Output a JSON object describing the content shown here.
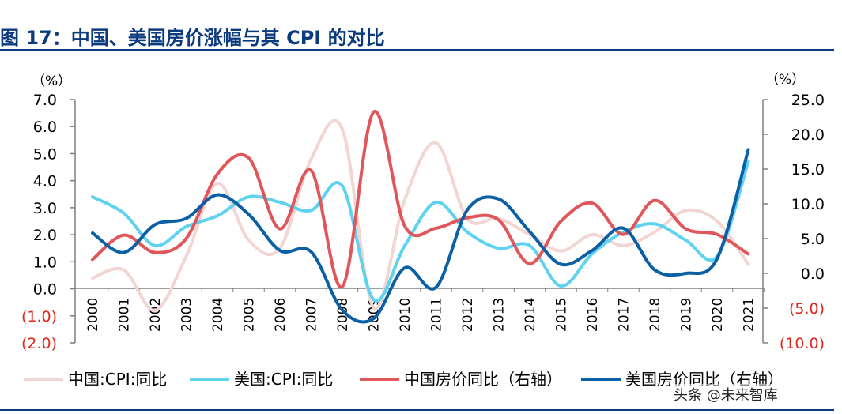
{
  "title": "图 17：中国、美国房价涨幅与其 CPI 的对比",
  "watermark": "头条 @未来智库",
  "chart_data": {
    "type": "line",
    "categories": [
      "2000",
      "2001",
      "2002",
      "2003",
      "2004",
      "2005",
      "2006",
      "2007",
      "2008",
      "2009",
      "2010",
      "2011",
      "2012",
      "2013",
      "2014",
      "2015",
      "2016",
      "2017",
      "2018",
      "2019",
      "2020",
      "2021"
    ],
    "left_axis": {
      "unit": "（%）",
      "ylim": [
        -2.0,
        7.0
      ],
      "ticks": [
        "7.0",
        "6.0",
        "5.0",
        "4.0",
        "3.0",
        "2.0",
        "1.0",
        "0.0",
        "(1.0)",
        "(2.0)"
      ]
    },
    "right_axis": {
      "unit": "（%）",
      "ylim": [
        -10.0,
        25.0
      ],
      "ticks": [
        "25.0",
        "20.0",
        "15.0",
        "10.0",
        "5.0",
        "0.0",
        "(5.0)",
        "(10.0)"
      ]
    },
    "series": [
      {
        "name": "中国:CPI:同比",
        "axis": "left",
        "color": "#f2d6d4",
        "values": [
          0.4,
          0.7,
          -0.8,
          1.2,
          3.9,
          1.8,
          1.5,
          4.8,
          5.9,
          -0.7,
          3.3,
          5.4,
          2.6,
          2.6,
          2.0,
          1.4,
          2.0,
          1.6,
          2.1,
          2.9,
          2.5,
          0.9
        ]
      },
      {
        "name": "美国:CPI:同比",
        "axis": "left",
        "color": "#5fd2f0",
        "values": [
          3.4,
          2.8,
          1.6,
          2.3,
          2.7,
          3.4,
          3.2,
          2.9,
          3.8,
          -0.4,
          1.6,
          3.2,
          2.1,
          1.5,
          1.6,
          0.1,
          1.3,
          2.1,
          2.4,
          1.8,
          1.2,
          4.7
        ]
      },
      {
        "name": "中国房价同比（右轴）",
        "axis": "right",
        "color": "#e0565a",
        "values": [
          2.0,
          5.5,
          3.0,
          5.0,
          14.3,
          16.6,
          6.4,
          14.8,
          -1.9,
          23.2,
          6.8,
          6.5,
          8.0,
          7.7,
          1.4,
          7.5,
          10.1,
          5.6,
          10.5,
          6.4,
          5.6,
          2.8
        ]
      },
      {
        "name": "美国房价同比（右轴）",
        "axis": "right",
        "color": "#0b5fa5",
        "values": [
          5.8,
          3.0,
          7.0,
          7.9,
          11.3,
          8.5,
          3.3,
          3.1,
          -5.3,
          -6.5,
          0.8,
          -2.0,
          9.1,
          10.7,
          6.0,
          1.3,
          3.3,
          6.5,
          0.5,
          0.0,
          2.1,
          17.8
        ]
      }
    ]
  }
}
